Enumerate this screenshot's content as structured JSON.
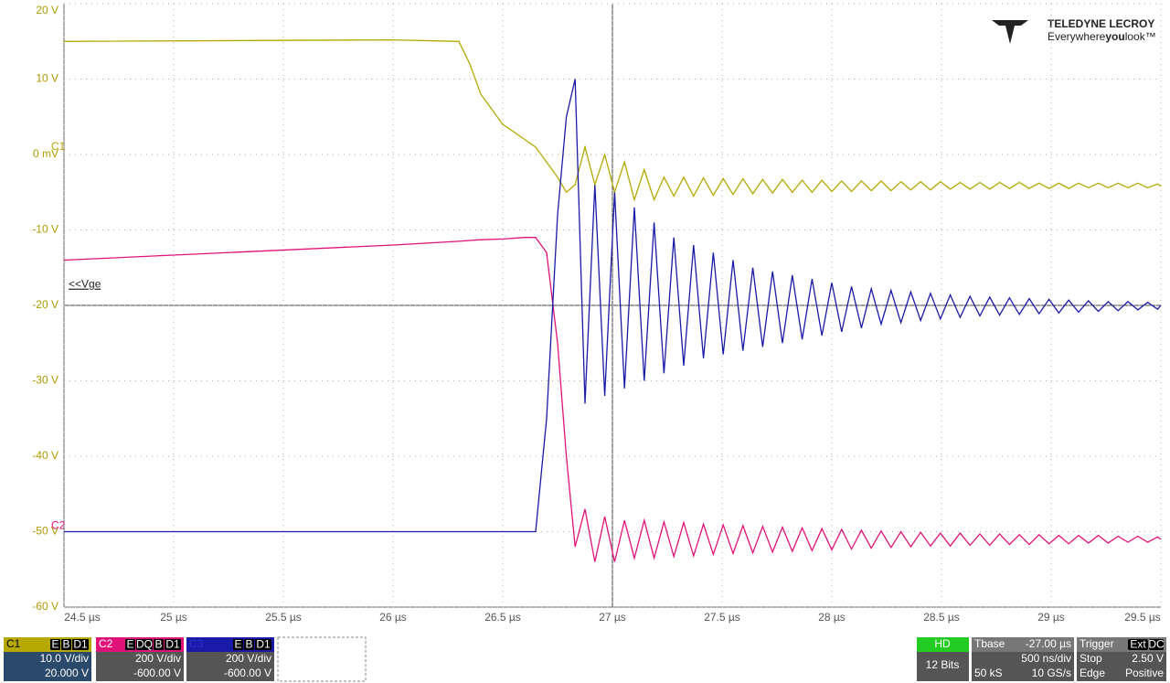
{
  "chart_data": {
    "type": "line",
    "x": [
      24.5,
      26.0,
      26.3,
      26.35,
      26.4,
      26.5,
      26.6,
      26.65,
      26.7,
      26.75,
      26.79,
      26.83,
      26.875,
      26.92,
      26.965,
      27.01,
      27.055,
      27.1,
      27.145,
      27.19,
      27.235,
      27.28,
      27.325,
      27.37,
      27.415,
      27.46,
      27.505,
      27.55,
      27.595,
      27.64,
      27.685,
      27.73,
      27.775,
      27.82,
      27.865,
      27.91,
      27.955,
      28.0,
      28.045,
      28.09,
      28.135,
      28.18,
      28.225,
      28.27,
      28.315,
      28.36,
      28.405,
      28.45,
      28.495,
      28.54,
      28.585,
      28.63,
      28.675,
      28.72,
      28.765,
      28.81,
      28.855,
      28.9,
      28.945,
      28.99,
      29.035,
      29.08,
      29.125,
      29.17,
      29.215,
      29.26,
      29.305,
      29.35,
      29.395,
      29.44,
      29.485,
      29.5
    ],
    "series": [
      {
        "name": "C1",
        "color": "#b5a800",
        "values": [
          15,
          15.2,
          15,
          12,
          8,
          4,
          2,
          1,
          -1,
          -3,
          -5,
          -4,
          1,
          -4,
          0,
          -5,
          -1,
          -6,
          -2,
          -6,
          -3,
          -5.5,
          -3,
          -5.5,
          -3.1,
          -5.4,
          -3.2,
          -5.3,
          -3.2,
          -5.2,
          -3.3,
          -5.1,
          -3.3,
          -5,
          -3.4,
          -5,
          -3.4,
          -4.9,
          -3.5,
          -4.9,
          -3.5,
          -4.8,
          -3.5,
          -4.8,
          -3.6,
          -4.7,
          -3.6,
          -4.7,
          -3.6,
          -4.6,
          -3.7,
          -4.6,
          -3.7,
          -4.6,
          -3.7,
          -4.5,
          -3.7,
          -4.5,
          -3.8,
          -4.5,
          -3.8,
          -4.5,
          -3.8,
          -4.4,
          -3.8,
          -4.4,
          -3.8,
          -4.4,
          -3.8,
          -4.4,
          -3.9,
          -4.2
        ]
      },
      {
        "name": "C2",
        "color": "#e0127a",
        "values": [
          -14,
          -12,
          -11.5,
          -11.4,
          -11.3,
          -11.2,
          -11,
          -11,
          -13,
          -25,
          -40,
          -52,
          -47,
          -54,
          -48,
          -54,
          -48.5,
          -53.5,
          -48.5,
          -53.5,
          -48.7,
          -53.3,
          -48.8,
          -53.2,
          -49,
          -53,
          -49.1,
          -52.9,
          -49.2,
          -52.8,
          -49.3,
          -52.7,
          -49.4,
          -52.6,
          -49.5,
          -52.5,
          -49.6,
          -52.4,
          -49.7,
          -52.3,
          -49.8,
          -52.2,
          -49.9,
          -52.1,
          -50,
          -52,
          -50.1,
          -51.9,
          -50.2,
          -51.9,
          -50.2,
          -51.8,
          -50.3,
          -51.8,
          -50.3,
          -51.7,
          -50.4,
          -51.7,
          -50.4,
          -51.6,
          -50.5,
          -51.6,
          -50.5,
          -51.5,
          -50.5,
          -51.5,
          -50.6,
          -51.4,
          -50.6,
          -51.4,
          -50.7,
          -51
        ]
      },
      {
        "name": "C3",
        "color": "#1a1aa8",
        "values": [
          -50,
          -50,
          -50,
          -50,
          -50,
          -50,
          -50,
          -50,
          -35,
          -8,
          5,
          10,
          -33,
          -4,
          -32,
          -5,
          -31,
          -7,
          -30,
          -9,
          -29,
          -11,
          -28,
          -12,
          -27,
          -13,
          -26.5,
          -14,
          -26,
          -15,
          -25.5,
          -15.5,
          -25,
          -16,
          -24.5,
          -16.5,
          -24,
          -17,
          -23.5,
          -17.5,
          -23,
          -17.8,
          -22.5,
          -18,
          -22.3,
          -18.2,
          -22,
          -18.4,
          -21.8,
          -18.6,
          -21.6,
          -18.8,
          -21.4,
          -18.9,
          -21.3,
          -19,
          -21.2,
          -19.1,
          -21.1,
          -19.2,
          -21,
          -19.3,
          -20.9,
          -19.4,
          -20.8,
          -19.5,
          -20.7,
          -19.5,
          -20.6,
          -19.6,
          -20.5,
          -20
        ]
      }
    ],
    "xlim": [
      24.5,
      29.5
    ],
    "ylim": [
      -60,
      20
    ],
    "xticks": [
      {
        "value": 24.5,
        "label": "24.5 µs"
      },
      {
        "value": 25,
        "label": "25 µs"
      },
      {
        "value": 25.5,
        "label": "25.5 µs"
      },
      {
        "value": 26,
        "label": "26 µs"
      },
      {
        "value": 26.5,
        "label": "26.5 µs"
      },
      {
        "value": 27,
        "label": "27 µs"
      },
      {
        "value": 27.5,
        "label": "27.5 µs"
      },
      {
        "value": 28,
        "label": "28 µs"
      },
      {
        "value": 28.5,
        "label": "28.5 µs"
      },
      {
        "value": 29,
        "label": "29 µs"
      },
      {
        "value": 29.5,
        "label": "29.5 µs"
      }
    ],
    "yticks": [
      {
        "value": 20,
        "label": "20 V"
      },
      {
        "value": 10,
        "label": "10 V"
      },
      {
        "value": 0,
        "label": "0 mV"
      },
      {
        "value": -10,
        "label": "-10 V"
      },
      {
        "value": -20,
        "label": "-20 V"
      },
      {
        "value": -30,
        "label": "-30 V"
      },
      {
        "value": -40,
        "label": "-40 V"
      },
      {
        "value": -50,
        "label": "-50 V"
      },
      {
        "value": -60,
        "label": "-60 V"
      }
    ],
    "grid": true,
    "annotations": [
      {
        "text": "C1",
        "y": 0
      },
      {
        "text": "C2",
        "y": -50
      },
      {
        "text": "<<Vge",
        "y": -18
      }
    ]
  },
  "channels": [
    {
      "badges": [
        "E",
        "B",
        "D1"
      ],
      "scale": "10.0 V/div",
      "offset": "20.000 V"
    },
    {
      "badges": [
        "E",
        "DQ",
        "B",
        "D1"
      ],
      "scale": "200 V/div",
      "offset": "-600.00 V"
    },
    {
      "badges": [
        "E",
        "B",
        "D1"
      ],
      "scale": "200 V/div",
      "offset": "-600.00 V"
    }
  ],
  "acquisition": {
    "mode": "HD",
    "bits": "12 Bits",
    "tbase_label": "Tbase",
    "tbase": "-27.00 µs",
    "timediv": "500 ns/div",
    "samples": "50 kS",
    "rate": "10 GS/s"
  },
  "trigger": {
    "label": "Trigger",
    "badges": [
      "Ext",
      "DC"
    ],
    "state": "Stop",
    "level": "2.50 V",
    "type": "Edge",
    "slope": "Positive"
  },
  "logo": {
    "brand": "TELEDYNE LECROY",
    "tag_a": "Everywhere",
    "tag_b": "you",
    "tag_c": "look™"
  }
}
